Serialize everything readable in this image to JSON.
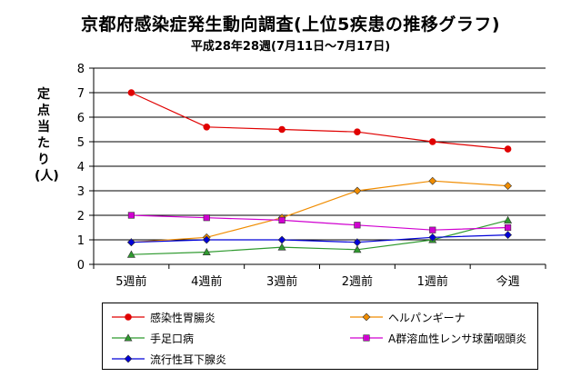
{
  "chart_data": {
    "type": "line",
    "title": "京都府感染症発生動向調査(上位5疾患の推移グラフ)",
    "subtitle": "平成28年28週(7月11日〜7月17日)",
    "ylabel": "定点当たり(人)",
    "xlabel": "",
    "categories": [
      "5週前",
      "4週前",
      "3週前",
      "2週前",
      "1週前",
      "今週"
    ],
    "ylim": [
      0,
      8
    ],
    "yticks": [
      0,
      1,
      2,
      3,
      4,
      5,
      6,
      7,
      8
    ],
    "grid": "horizontal",
    "legend_position": "bottom",
    "series": [
      {
        "name": "感染性胃腸炎",
        "color": "#e00000",
        "marker": "circle",
        "values": [
          7.0,
          5.6,
          5.5,
          5.4,
          5.0,
          4.7
        ]
      },
      {
        "name": "ヘルパンギーナ",
        "color": "#f08c00",
        "marker": "diamond",
        "values": [
          0.9,
          1.1,
          1.9,
          3.0,
          3.4,
          3.2
        ]
      },
      {
        "name": "手足口病",
        "color": "#2f9a2f",
        "marker": "triangle",
        "values": [
          0.4,
          0.5,
          0.7,
          0.6,
          1.0,
          1.8
        ]
      },
      {
        "name": "A群溶血性レンサ球菌咽頭炎",
        "color": "#d000d0",
        "marker": "square",
        "values": [
          2.0,
          1.9,
          1.8,
          1.6,
          1.4,
          1.5
        ]
      },
      {
        "name": "流行性耳下腺炎",
        "color": "#0000d8",
        "marker": "diamond",
        "values": [
          0.9,
          1.0,
          1.0,
          0.9,
          1.1,
          1.2
        ]
      }
    ]
  }
}
